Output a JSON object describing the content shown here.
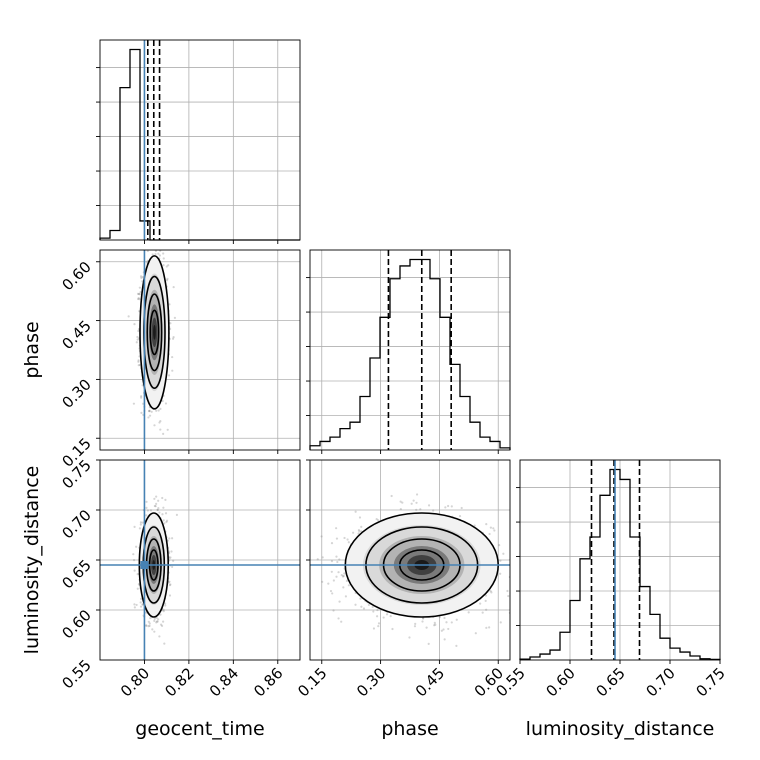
{
  "colors": {
    "truth": "#4682b4",
    "hist": "#000000",
    "grid": "#b0b0b0",
    "quantile": "#000000"
  },
  "chart_data": {
    "type": "corner",
    "title": "",
    "parameters": [
      "geocent_time",
      "phase",
      "luminosity_distance"
    ],
    "truths": {
      "geocent_time": 0.8,
      "luminosity_distance": 0.645
    },
    "grid": true,
    "panels": {
      "geocent_time": {
        "xlim": [
          0.78,
          0.87
        ],
        "xticks": [
          "0.80",
          "0.82",
          "0.84",
          "0.86"
        ],
        "quantiles": [
          0.8015,
          0.8042,
          0.8068
        ],
        "bin_start": 0.78,
        "bin_width": 0.0045,
        "counts": [
          1,
          5,
          80,
          100,
          10,
          0,
          0,
          0,
          0,
          0,
          0,
          0,
          0,
          0,
          0,
          0,
          0,
          0,
          0,
          0
        ]
      },
      "phase": {
        "xlim": [
          0.12,
          0.63
        ],
        "xticks": [
          "0.15",
          "0.30",
          "0.45",
          "0.60"
        ],
        "yticks": [
          "0.15",
          "0.30",
          "0.45",
          "0.60"
        ],
        "quantiles": [
          0.32,
          0.405,
          0.48
        ],
        "bin_start": 0.12,
        "bin_width": 0.0255,
        "counts": [
          2,
          4,
          6,
          10,
          13,
          25,
          43,
          62,
          80,
          86,
          89,
          89,
          80,
          62,
          40,
          25,
          13,
          6,
          4,
          1
        ]
      },
      "luminosity_distance": {
        "xlim": [
          0.55,
          0.75
        ],
        "xticks": [
          "0.55",
          "0.60",
          "0.65",
          "0.70",
          "0.75"
        ],
        "yticks": [
          "0.60",
          "0.65",
          "0.70",
          "0.75"
        ],
        "quantiles": [
          0.6215,
          0.644,
          0.6695
        ],
        "bin_start": 0.55,
        "bin_width": 0.01,
        "counts": [
          0.4,
          1.5,
          3,
          5,
          14,
          30,
          51,
          62,
          83,
          96,
          91,
          62,
          37,
          23,
          11,
          6,
          4,
          2,
          0.6,
          0.3
        ]
      }
    },
    "joint": {
      "geocent_time-phase": {
        "center": [
          0.8045,
          0.42
        ],
        "sigma": [
          0.0025,
          0.075
        ]
      },
      "geocent_time-luminosity_distance": {
        "center": [
          0.8042,
          0.645
        ],
        "sigma": [
          0.0025,
          0.02
        ]
      },
      "phase-luminosity_distance": {
        "center": [
          0.405,
          0.645
        ],
        "sigma": [
          0.075,
          0.02
        ]
      }
    }
  }
}
